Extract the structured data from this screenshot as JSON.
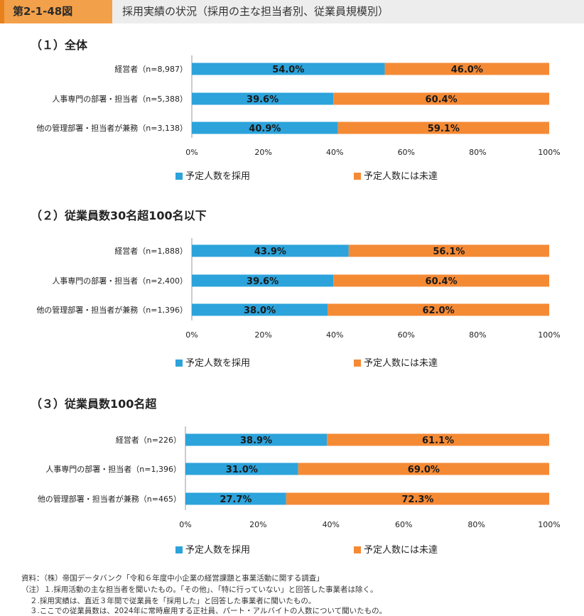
{
  "figure": {
    "number": "第2-1-48図",
    "title": "採用実績の状況（採用の主な担当者別、従業員規模別）"
  },
  "legend": {
    "adopted": "予定人数を採用",
    "not_reached": "予定人数には未達"
  },
  "colors": {
    "adopted": "#2ca3db",
    "not_reached": "#f58a35"
  },
  "axis_ticks": [
    "0%",
    "20%",
    "40%",
    "60%",
    "80%",
    "100%"
  ],
  "chart_data": [
    {
      "type": "bar",
      "orientation": "horizontal",
      "stacked": true,
      "title": "（１）全体",
      "categories": [
        "経営者（n=8,987）",
        "人事専門の部署・担当者（n=5,388）",
        "他の管理部署・担当者が兼務（n=3,138）"
      ],
      "series": [
        {
          "name": "予定人数を採用",
          "values": [
            54.0,
            39.6,
            40.9
          ]
        },
        {
          "name": "予定人数には未達",
          "values": [
            46.0,
            60.4,
            59.1
          ]
        }
      ],
      "xlim": [
        0,
        100
      ]
    },
    {
      "type": "bar",
      "orientation": "horizontal",
      "stacked": true,
      "title": "（２）従業員数30名超100名以下",
      "categories": [
        "経営者（n=1,888）",
        "人事専門の部署・担当者（n=2,400）",
        "他の管理部署・担当者が兼務（n=1,396）"
      ],
      "series": [
        {
          "name": "予定人数を採用",
          "values": [
            43.9,
            39.6,
            38.0
          ]
        },
        {
          "name": "予定人数には未達",
          "values": [
            56.1,
            60.4,
            62.0
          ]
        }
      ],
      "xlim": [
        0,
        100
      ]
    },
    {
      "type": "bar",
      "orientation": "horizontal",
      "stacked": true,
      "title": "（３）従業員数100名超",
      "categories": [
        "経営者（n=226）",
        "人事専門の部署・担当者（n=1,396）",
        "他の管理部署・担当者が兼務（n=465）"
      ],
      "series": [
        {
          "name": "予定人数を採用",
          "values": [
            38.9,
            31.0,
            27.7
          ]
        },
        {
          "name": "予定人数には未達",
          "values": [
            61.1,
            69.0,
            72.3
          ]
        }
      ],
      "xlim": [
        0,
        100
      ]
    }
  ],
  "notes": [
    "資料：（株）帝国データバンク「令和６年度中小企業の経営課題と事業活動に関する調査」",
    "（注）１.採用活動の主な担当者を聞いたもの。「その他」、「特に行っていない」と回答した事業者は除く。",
    "２.採用実績は、直近３年間で従業員を「採用した」と回答した事業者に聞いたもの。",
    "３.ここでの従業員数は、2024年に常時雇用する正社員、パート・アルバイトの人数について聞いたもの。"
  ]
}
